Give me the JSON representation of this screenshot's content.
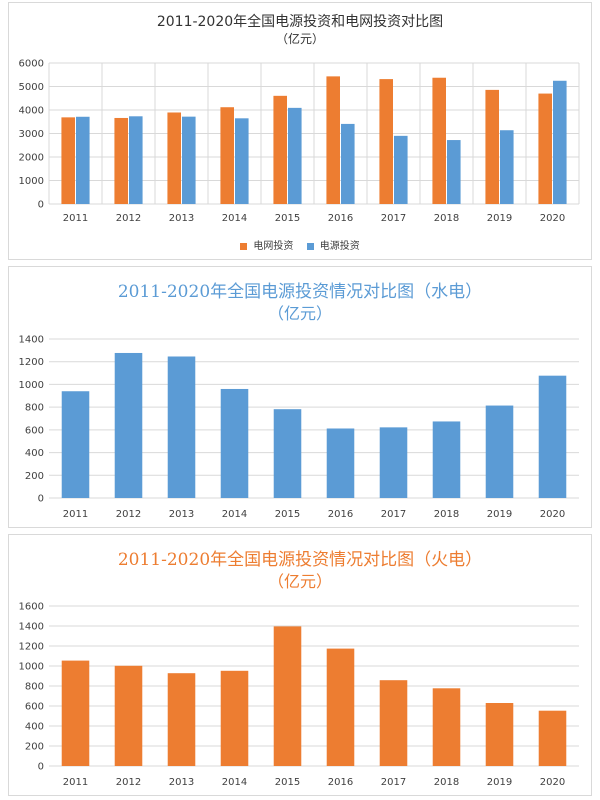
{
  "colors": {
    "orange": "#ed7d31",
    "blue": "#5b9bd5",
    "grid": "#d9d9d9",
    "axis_text": "#404040"
  },
  "chart_data": [
    {
      "type": "bar",
      "title": "2011-2020年全国电源投资和电网投资对比图",
      "subtitle": "（亿元）",
      "categories": [
        "2011",
        "2012",
        "2013",
        "2014",
        "2015",
        "2016",
        "2017",
        "2018",
        "2019",
        "2020"
      ],
      "series": [
        {
          "name": "电网投资",
          "color": "#ed7d31",
          "values": [
            3687,
            3661,
            3894,
            4118,
            4603,
            5431,
            5315,
            5373,
            4856,
            4699
          ]
        },
        {
          "name": "电源投资",
          "color": "#5b9bd5",
          "values": [
            3712,
            3732,
            3717,
            3646,
            4091,
            3408,
            2900,
            2721,
            3139,
            5244
          ]
        }
      ],
      "ylim": [
        0,
        6000
      ],
      "yticks": [
        0,
        1000,
        2000,
        3000,
        4000,
        5000,
        6000
      ],
      "grid": true,
      "vertical_grid": true,
      "legend": "bottom"
    },
    {
      "type": "bar",
      "title": "2011-2020年全国电源投资情况对比图（水电）",
      "subtitle": "（亿元）",
      "categories": [
        "2011",
        "2012",
        "2013",
        "2014",
        "2015",
        "2016",
        "2017",
        "2018",
        "2019",
        "2020"
      ],
      "series": [
        {
          "color": "#5b9bd5",
          "values": [
            940,
            1277,
            1246,
            960,
            782,
            612,
            622,
            674,
            814,
            1077
          ]
        }
      ],
      "ylim": [
        0,
        1400
      ],
      "yticks": [
        0,
        200,
        400,
        600,
        800,
        1000,
        1200,
        1400
      ],
      "grid": true,
      "vertical_grid": false
    },
    {
      "type": "bar",
      "title": "2011-2020年全国电源投资情况对比图（火电）",
      "subtitle": "（亿元）",
      "categories": [
        "2011",
        "2012",
        "2013",
        "2014",
        "2015",
        "2016",
        "2017",
        "2018",
        "2019",
        "2020"
      ],
      "series": [
        {
          "color": "#ed7d31",
          "values": [
            1054,
            1002,
            928,
            952,
            1396,
            1174,
            858,
            777,
            630,
            553
          ]
        }
      ],
      "ylim": [
        0,
        1600
      ],
      "yticks": [
        0,
        200,
        400,
        600,
        800,
        1000,
        1200,
        1400,
        1600
      ],
      "grid": true,
      "vertical_grid": false
    }
  ]
}
